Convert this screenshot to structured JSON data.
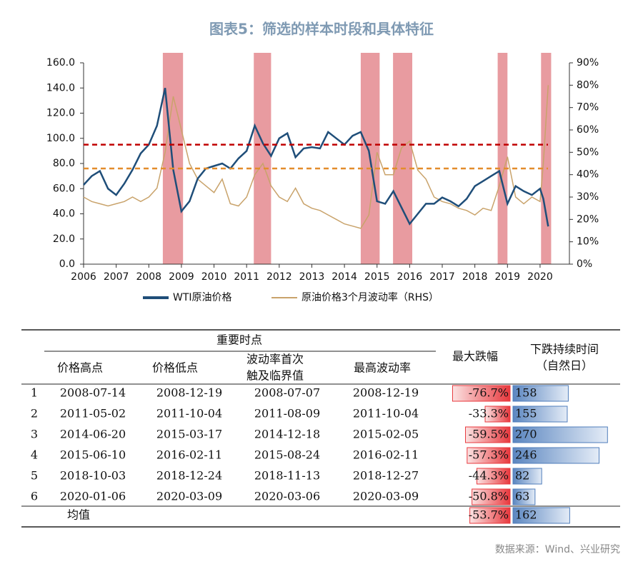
{
  "title": "图表5：筛选的样本时段和具体特征",
  "chart_data": {
    "type": "line",
    "x": [
      2006,
      2006.25,
      2006.5,
      2006.75,
      2007,
      2007.25,
      2007.5,
      2007.75,
      2008,
      2008.25,
      2008.5,
      2008.75,
      2009,
      2009.25,
      2009.5,
      2009.75,
      2010,
      2010.25,
      2010.5,
      2010.75,
      2011,
      2011.25,
      2011.5,
      2011.75,
      2012,
      2012.25,
      2012.5,
      2012.75,
      2013,
      2013.25,
      2013.5,
      2013.75,
      2014,
      2014.25,
      2014.5,
      2014.75,
      2015,
      2015.25,
      2015.5,
      2015.75,
      2016,
      2016.25,
      2016.5,
      2016.75,
      2017,
      2017.25,
      2017.5,
      2017.75,
      2018,
      2018.25,
      2018.5,
      2018.75,
      2019,
      2019.25,
      2019.5,
      2019.75,
      2020,
      2020.1,
      2020.25
    ],
    "series": [
      {
        "name": "WTI原油价格",
        "color": "#1f4e79",
        "values": [
          63,
          70,
          74,
          60,
          55,
          64,
          75,
          88,
          95,
          110,
          140,
          75,
          42,
          50,
          68,
          76,
          78,
          80,
          76,
          84,
          90,
          110,
          96,
          86,
          100,
          104,
          85,
          92,
          93,
          92,
          105,
          100,
          95,
          102,
          105,
          90,
          50,
          48,
          58,
          45,
          32,
          40,
          48,
          48,
          53,
          50,
          46,
          52,
          62,
          66,
          70,
          74,
          48,
          62,
          58,
          55,
          60,
          52,
          30
        ]
      },
      {
        "name": "原油价格3个月波动率（RHS）",
        "color": "#c9a36b",
        "axis": "y2",
        "values": [
          30,
          28,
          27,
          26,
          27,
          28,
          30,
          28,
          30,
          34,
          50,
          75,
          60,
          45,
          38,
          35,
          32,
          38,
          27,
          26,
          30,
          40,
          45,
          35,
          30,
          28,
          34,
          27,
          25,
          24,
          22,
          20,
          18,
          17,
          16,
          22,
          50,
          40,
          40,
          52,
          55,
          42,
          38,
          30,
          28,
          27,
          25,
          24,
          22,
          25,
          24,
          35,
          48,
          30,
          27,
          30,
          28,
          45,
          80
        ]
      }
    ],
    "xlim": [
      2006,
      2020.9
    ],
    "xticks": [
      2006,
      2007,
      2008,
      2009,
      2010,
      2011,
      2012,
      2013,
      2014,
      2015,
      2016,
      2017,
      2018,
      2019,
      2020
    ],
    "ylim": [
      0,
      160
    ],
    "yticks": [
      {
        "value": 0,
        "label": "0.0"
      },
      {
        "value": 20,
        "label": "20.0"
      },
      {
        "value": 40,
        "label": "40.0"
      },
      {
        "value": 60,
        "label": "60.0"
      },
      {
        "value": 80,
        "label": "80.0"
      },
      {
        "value": 100,
        "label": "100.0"
      },
      {
        "value": 120,
        "label": "120.0"
      },
      {
        "value": 140,
        "label": "140.0"
      },
      {
        "value": 160,
        "label": "160.0"
      }
    ],
    "y2lim": [
      0,
      90
    ],
    "y2ticks": [
      {
        "value": 0,
        "label": "0%"
      },
      {
        "value": 10,
        "label": "10%"
      },
      {
        "value": 20,
        "label": "20%"
      },
      {
        "value": 30,
        "label": "30%"
      },
      {
        "value": 40,
        "label": "40%"
      },
      {
        "value": 50,
        "label": "50%"
      },
      {
        "value": 60,
        "label": "60%"
      },
      {
        "value": 70,
        "label": "70%"
      },
      {
        "value": 80,
        "label": "80%"
      },
      {
        "value": 90,
        "label": "90%"
      }
    ],
    "shaded_ranges": [
      [
        2008.43,
        2009.05
      ],
      [
        2011.22,
        2011.75
      ],
      [
        2014.5,
        2015.08
      ],
      [
        2015.49,
        2016.08
      ],
      [
        2018.7,
        2019.0
      ],
      [
        2020.03,
        2020.34
      ]
    ],
    "shade_color": "#e48a8f",
    "reference_lines": [
      {
        "value": 95,
        "color": "#c00000"
      },
      {
        "value": 76,
        "color": "#e38d2c"
      }
    ]
  },
  "table": {
    "group_header": "重要时点",
    "headers": [
      "价格高点",
      "价格低点",
      [
        "波动率首次",
        "触及临界值"
      ],
      "最高波动率",
      "最大跌幅",
      [
        "下跌持续时间",
        "（自然日）"
      ]
    ],
    "rows": [
      {
        "index": "1",
        "dates": [
          "2008-07-14",
          "2008-12-19",
          "2008-07-07",
          "2008-12-19"
        ],
        "drop": -76.7,
        "drop_label": "-76.7%",
        "duration": 158
      },
      {
        "index": "2",
        "dates": [
          "2011-05-02",
          "2011-10-04",
          "2011-08-09",
          "2011-10-04"
        ],
        "drop": -33.3,
        "drop_label": "-33.3%",
        "duration": 155
      },
      {
        "index": "3",
        "dates": [
          "2014-06-20",
          "2015-03-17",
          "2014-12-18",
          "2015-02-05"
        ],
        "drop": -59.5,
        "drop_label": "-59.5%",
        "duration": 270
      },
      {
        "index": "4",
        "dates": [
          "2015-06-10",
          "2016-02-11",
          "2015-08-24",
          "2016-02-11"
        ],
        "drop": -57.3,
        "drop_label": "-57.3%",
        "duration": 246
      },
      {
        "index": "5",
        "dates": [
          "2018-10-03",
          "2018-12-24",
          "2018-11-13",
          "2018-12-27"
        ],
        "drop": -44.3,
        "drop_label": "-44.3%",
        "duration": 82
      },
      {
        "index": "6",
        "dates": [
          "2020-01-06",
          "2020-03-09",
          "2020-03-06",
          "2020-03-09"
        ],
        "drop": -50.8,
        "drop_label": "-50.8%",
        "duration": 63
      }
    ],
    "mean": {
      "label": "均值",
      "drop": -53.7,
      "drop_label": "-53.7%",
      "duration": 162
    }
  },
  "source": "数据来源：Wind、兴业研究"
}
